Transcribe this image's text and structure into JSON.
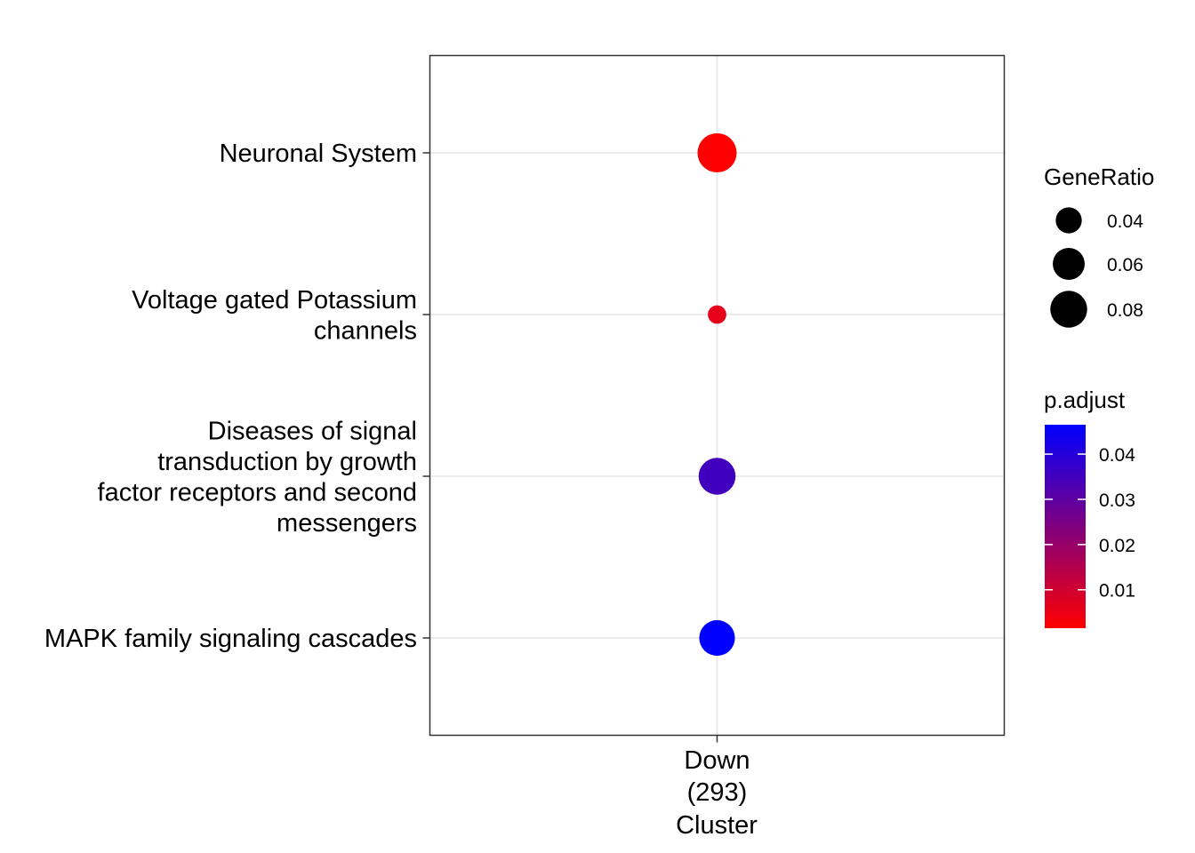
{
  "chart_data": {
    "type": "scatter",
    "x_categories": [
      "Down\n(293)"
    ],
    "xlabel": "Cluster",
    "ylabel": "",
    "y_categories": [
      "Neuronal System",
      "Voltage gated Potassium\nchannels",
      "Diseases of signal\ntransduction by growth\nfactor receptors and second\nmessengers",
      "MAPK family signaling cascades"
    ],
    "points": [
      {
        "x": "Down\n(293)",
        "y": "Neuronal System",
        "GeneRatio": 0.09,
        "p_adjust": 0.0015
      },
      {
        "x": "Down\n(293)",
        "y": "Voltage gated Potassium\nchannels",
        "GeneRatio": 0.02,
        "p_adjust": 0.006
      },
      {
        "x": "Down\n(293)",
        "y": "Diseases of signal\ntransduction by growth\nfactor receptors and second\nmessengers",
        "GeneRatio": 0.08,
        "p_adjust": 0.035
      },
      {
        "x": "Down\n(293)",
        "y": "MAPK family signaling cascades",
        "GeneRatio": 0.075,
        "p_adjust": 0.0465
      }
    ],
    "size_legend": {
      "title": "GeneRatio",
      "breaks": [
        0.04,
        0.06,
        0.08
      ],
      "labels": [
        "0.04",
        "0.06",
        "0.08"
      ]
    },
    "color_legend": {
      "title": "p.adjust",
      "low_color": "#FF0000",
      "high_color": "#0000FF",
      "range": [
        0.0015,
        0.0465
      ],
      "breaks": [
        0.01,
        0.02,
        0.03,
        0.04
      ],
      "labels": [
        "0.01",
        "0.02",
        "0.03",
        "0.04"
      ]
    },
    "grid": true,
    "legend_position": "right"
  }
}
